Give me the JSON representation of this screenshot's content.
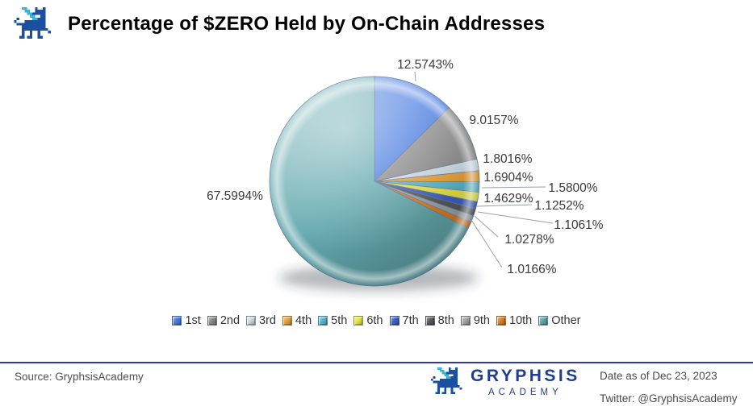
{
  "header": {
    "title": "Percentage of $ZERO Held by On-Chain Addresses",
    "logo": "gryphsis-dragon-logo"
  },
  "chart_data": {
    "type": "pie",
    "title": "Percentage of $ZERO Held by On-Chain Addresses",
    "unit": "%",
    "start_angle_deg": 0,
    "direction": "clockwise",
    "legend_position": "bottom",
    "categories": [
      "1st",
      "2nd",
      "3rd",
      "4th",
      "5th",
      "6th",
      "7th",
      "8th",
      "9th",
      "10th",
      "Other"
    ],
    "values": [
      12.5743,
      9.0157,
      1.8016,
      1.6904,
      1.58,
      1.4629,
      1.1252,
      1.1061,
      1.0278,
      1.0166,
      67.5994
    ],
    "data_labels": [
      "12.5743%",
      "9.0157%",
      "1.8016%",
      "1.6904%",
      "1.5800%",
      "1.4629%",
      "1.1252%",
      "1.1061%",
      "1.0278%",
      "1.0166%",
      "67.5994%"
    ],
    "colors": [
      "#4a7ce0",
      "#8c8c8c",
      "#cadbe2",
      "#e8a33c",
      "#5cb8cd",
      "#e9e64a",
      "#3f63c9",
      "#585d60",
      "#9fa6a9",
      "#dd7f23",
      "#63a8ae"
    ],
    "total": 100
  },
  "footer": {
    "source": "Source: GryphsisAcademy",
    "brand_name": "GRYPHSIS",
    "brand_sub": "ACADEMY",
    "date": "Date as of Dec 23, 2023",
    "twitter": "Twitter: @GryphsisAcademy",
    "rule_color": "#2b3f90"
  }
}
